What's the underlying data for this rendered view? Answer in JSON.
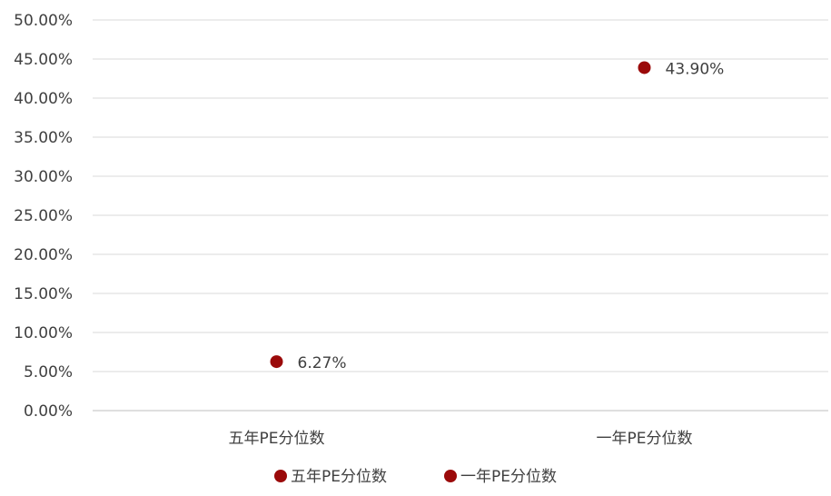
{
  "chart_data": {
    "type": "scatter",
    "title": "",
    "xlabel": "",
    "ylabel": "",
    "categories": [
      "五年PE分位数",
      "一年PE分位数"
    ],
    "ylim": [
      0,
      50
    ],
    "yticks": [
      0,
      5,
      10,
      15,
      20,
      25,
      30,
      35,
      40,
      45,
      50
    ],
    "ytick_labels": [
      "0.00%",
      "5.00%",
      "10.00%",
      "15.00%",
      "20.00%",
      "25.00%",
      "30.00%",
      "35.00%",
      "40.00%",
      "45.00%",
      "50.00%"
    ],
    "y_unit": "%",
    "grid": true,
    "legend_position": "bottom",
    "series": [
      {
        "name": "五年PE分位数",
        "color": "#9b0a0a",
        "points": [
          {
            "category": "五年PE分位数",
            "value": 6.27,
            "label": "6.27%"
          }
        ]
      },
      {
        "name": "一年PE分位数",
        "color": "#9b0a0a",
        "points": [
          {
            "category": "一年PE分位数",
            "value": 43.9,
            "label": "43.90%"
          }
        ]
      }
    ]
  }
}
